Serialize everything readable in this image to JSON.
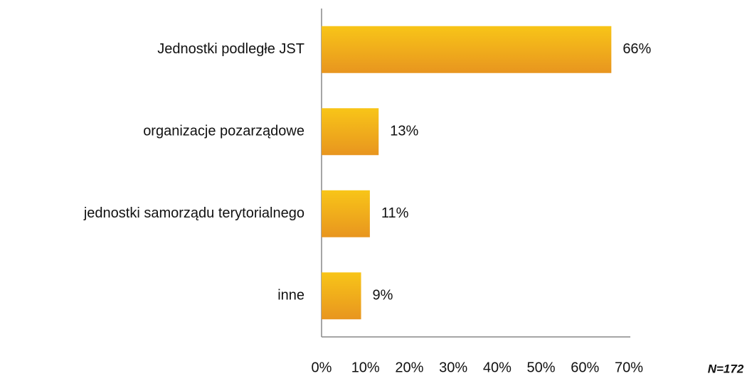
{
  "chart_data": {
    "type": "bar",
    "orientation": "horizontal",
    "categories": [
      "Jednostki podległe JST",
      "organizacje pozarządowe",
      "jednostki samorządu terytorialnego",
      "inne"
    ],
    "values": [
      66,
      13,
      11,
      9
    ],
    "value_labels": [
      "66%",
      "13%",
      "11%",
      "9%"
    ],
    "color": "#f0a91c",
    "xlim": [
      0,
      70
    ],
    "xticks": [
      {
        "value": 0,
        "label": "0%"
      },
      {
        "value": 10,
        "label": "10%"
      },
      {
        "value": 20,
        "label": "20%"
      },
      {
        "value": 30,
        "label": "30%"
      },
      {
        "value": 40,
        "label": "40%"
      },
      {
        "value": 50,
        "label": "50%"
      },
      {
        "value": 60,
        "label": "60%"
      },
      {
        "value": 70,
        "label": "70%"
      }
    ],
    "grid": false,
    "annotation": "N=172"
  }
}
